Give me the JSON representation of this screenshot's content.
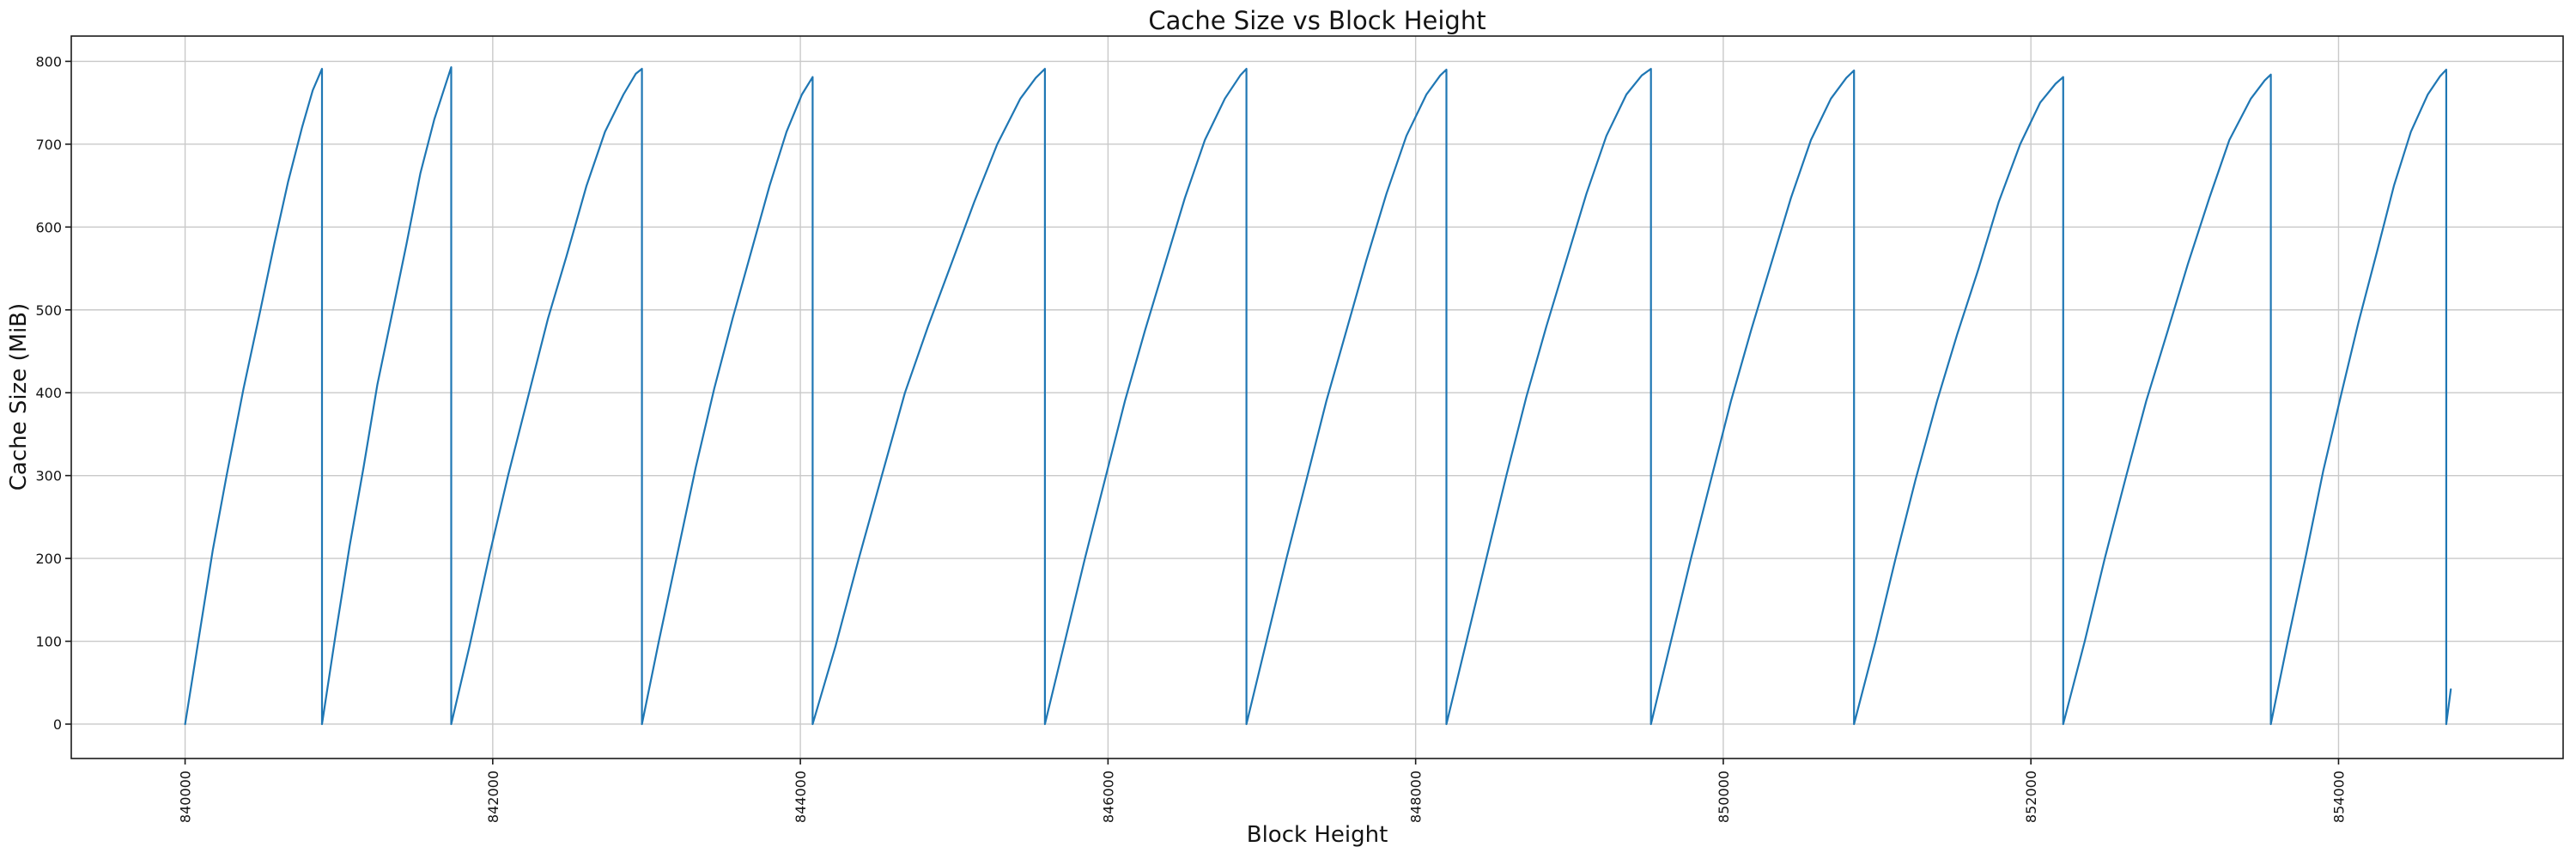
{
  "chart_data": {
    "type": "line",
    "title": "Cache Size vs Block Height",
    "xlabel": "Block Height",
    "ylabel": "Cache Size (MiB)",
    "line_color": "#1f77b4",
    "grid": true,
    "grid_color": "#c9c9c9",
    "legend": "none",
    "xlim": [
      839260,
      855460
    ],
    "ylim": [
      -41.5,
      830.5
    ],
    "x_ticks": [
      840000,
      842000,
      844000,
      846000,
      848000,
      850000,
      852000,
      854000
    ],
    "y_ticks": [
      0,
      100,
      200,
      300,
      400,
      500,
      600,
      700,
      800
    ],
    "x_tick_rotation_deg": 90,
    "points": [
      [
        840000,
        0
      ],
      [
        840090,
        105
      ],
      [
        840180,
        210
      ],
      [
        840270,
        300
      ],
      [
        840380,
        405
      ],
      [
        840490,
        500
      ],
      [
        840580,
        580
      ],
      [
        840670,
        655
      ],
      [
        840760,
        720
      ],
      [
        840830,
        765
      ],
      [
        840890,
        791
      ],
      [
        840890,
        0
      ],
      [
        840980,
        110
      ],
      [
        841070,
        215
      ],
      [
        841160,
        310
      ],
      [
        841250,
        410
      ],
      [
        841340,
        490
      ],
      [
        841440,
        580
      ],
      [
        841530,
        665
      ],
      [
        841620,
        730
      ],
      [
        841690,
        770
      ],
      [
        841730,
        793
      ],
      [
        841730,
        0
      ],
      [
        841850,
        95
      ],
      [
        841980,
        205
      ],
      [
        842100,
        300
      ],
      [
        842230,
        395
      ],
      [
        842360,
        490
      ],
      [
        842480,
        565
      ],
      [
        842610,
        650
      ],
      [
        842730,
        715
      ],
      [
        842850,
        760
      ],
      [
        842930,
        785
      ],
      [
        842970,
        791
      ],
      [
        842970,
        0
      ],
      [
        843080,
        100
      ],
      [
        843200,
        205
      ],
      [
        843320,
        310
      ],
      [
        843440,
        405
      ],
      [
        843560,
        490
      ],
      [
        843680,
        570
      ],
      [
        843800,
        650
      ],
      [
        843910,
        715
      ],
      [
        844010,
        760
      ],
      [
        844080,
        781
      ],
      [
        844080,
        0
      ],
      [
        844230,
        95
      ],
      [
        844380,
        200
      ],
      [
        844530,
        300
      ],
      [
        844680,
        400
      ],
      [
        844830,
        480
      ],
      [
        844980,
        555
      ],
      [
        845130,
        630
      ],
      [
        845280,
        700
      ],
      [
        845430,
        755
      ],
      [
        845530,
        780
      ],
      [
        845590,
        791
      ],
      [
        845590,
        0
      ],
      [
        845720,
        100
      ],
      [
        845850,
        200
      ],
      [
        845980,
        295
      ],
      [
        846110,
        390
      ],
      [
        846240,
        475
      ],
      [
        846370,
        555
      ],
      [
        846500,
        635
      ],
      [
        846630,
        705
      ],
      [
        846760,
        755
      ],
      [
        846860,
        783
      ],
      [
        846900,
        791
      ],
      [
        846900,
        0
      ],
      [
        847030,
        100
      ],
      [
        847160,
        200
      ],
      [
        847290,
        295
      ],
      [
        847420,
        390
      ],
      [
        847550,
        475
      ],
      [
        847680,
        560
      ],
      [
        847810,
        640
      ],
      [
        847940,
        710
      ],
      [
        848070,
        760
      ],
      [
        848160,
        783
      ],
      [
        848200,
        790
      ],
      [
        848200,
        0
      ],
      [
        848330,
        100
      ],
      [
        848460,
        200
      ],
      [
        848590,
        300
      ],
      [
        848720,
        395
      ],
      [
        848850,
        480
      ],
      [
        848980,
        560
      ],
      [
        849110,
        640
      ],
      [
        849240,
        710
      ],
      [
        849370,
        760
      ],
      [
        849470,
        783
      ],
      [
        849530,
        791
      ],
      [
        849530,
        0
      ],
      [
        849660,
        100
      ],
      [
        849790,
        200
      ],
      [
        849920,
        295
      ],
      [
        850050,
        390
      ],
      [
        850180,
        475
      ],
      [
        850310,
        555
      ],
      [
        850440,
        635
      ],
      [
        850570,
        705
      ],
      [
        850700,
        755
      ],
      [
        850800,
        780
      ],
      [
        850850,
        789
      ],
      [
        850850,
        0
      ],
      [
        850990,
        100
      ],
      [
        851120,
        200
      ],
      [
        851250,
        295
      ],
      [
        851390,
        390
      ],
      [
        851520,
        470
      ],
      [
        851660,
        550
      ],
      [
        851790,
        630
      ],
      [
        851930,
        700
      ],
      [
        852060,
        750
      ],
      [
        852160,
        773
      ],
      [
        852210,
        781
      ],
      [
        852210,
        0
      ],
      [
        852350,
        100
      ],
      [
        852480,
        200
      ],
      [
        852620,
        300
      ],
      [
        852750,
        390
      ],
      [
        852890,
        475
      ],
      [
        853020,
        555
      ],
      [
        853160,
        635
      ],
      [
        853290,
        705
      ],
      [
        853430,
        755
      ],
      [
        853520,
        777
      ],
      [
        853560,
        784
      ],
      [
        853560,
        0
      ],
      [
        853670,
        100
      ],
      [
        853790,
        205
      ],
      [
        853900,
        305
      ],
      [
        854020,
        400
      ],
      [
        854130,
        485
      ],
      [
        854250,
        570
      ],
      [
        854360,
        650
      ],
      [
        854470,
        715
      ],
      [
        854580,
        760
      ],
      [
        854660,
        782
      ],
      [
        854700,
        790
      ],
      [
        854700,
        0
      ],
      [
        854730,
        42
      ]
    ]
  }
}
